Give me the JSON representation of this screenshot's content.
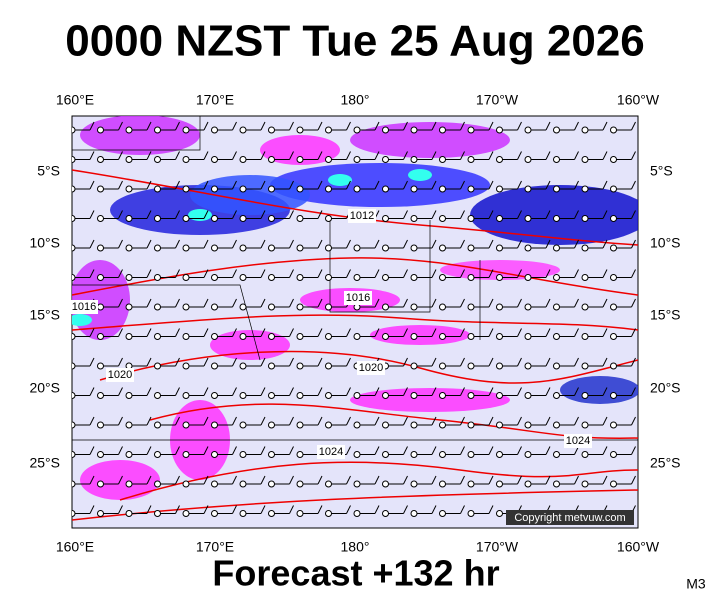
{
  "title": "0000 NZST Tue 25 Aug 2026",
  "footer": "Forecast +132 hr",
  "corner_label": "M3",
  "copyright": "Copyright metvuw.com",
  "axes": {
    "top": [
      "160°E",
      "170°E",
      "180°",
      "170°W",
      "160°W"
    ],
    "bottom": [
      "160°E",
      "170°E",
      "180°",
      "170°W",
      "160°W"
    ],
    "left": [
      "5°S",
      "10°S",
      "15°S",
      "20°S",
      "25°S"
    ],
    "right": [
      "5°S",
      "10°S",
      "15°S",
      "20°S",
      "25°S"
    ]
  },
  "isobar_labels": [
    "1012",
    "1016",
    "1016",
    "1020",
    "1020",
    "1024",
    "1024"
  ]
}
